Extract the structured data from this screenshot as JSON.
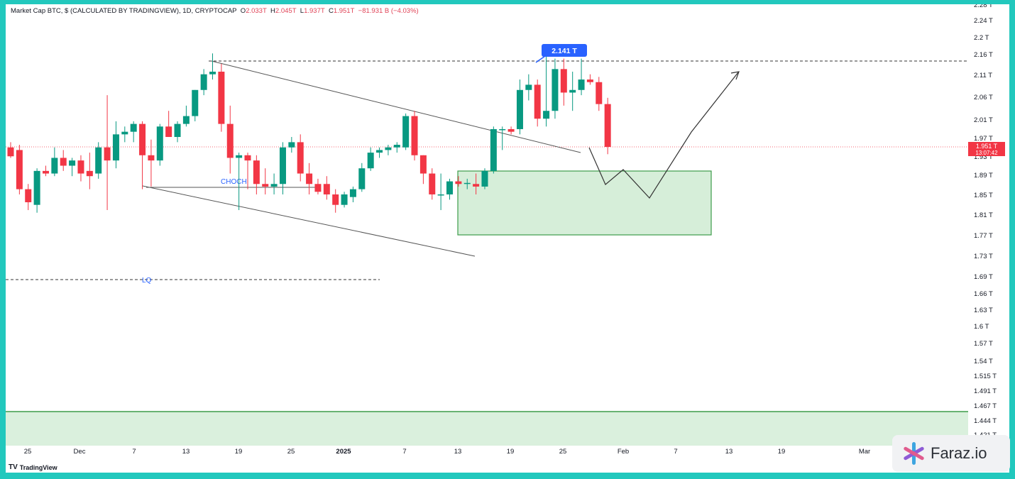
{
  "header": {
    "title": "Market Cap BTC, $ (CALCULATED BY TRADINGVIEW), 1D, CRYPTOCAP",
    "o_label": "O",
    "o_value": "2.033T",
    "h_label": "H",
    "h_value": "2.045T",
    "l_label": "L",
    "l_value": "1.937T",
    "c_label": "C",
    "c_value": "1.951T",
    "change": "−81.931 B (−4.03%)"
  },
  "brand": {
    "logo": "TV",
    "name": "TradingView"
  },
  "watermark": {
    "text": "Faraz.io"
  },
  "colors": {
    "up": "#089981",
    "down": "#f23645",
    "zone_fill": "#cdebd1",
    "zone_stroke": "#3d9c4a",
    "label_bg": "#2962ff"
  },
  "chart_data": {
    "type": "candlestick",
    "y_ticks": [
      "2.28 T",
      "2.24 T",
      "2.2 T",
      "2.16 T",
      "2.11 T",
      "2.06 T",
      "2.01 T",
      "1.97 T",
      "1.93 T",
      "1.89 T",
      "1.85 T",
      "1.81 T",
      "1.77 T",
      "1.73 T",
      "1.69 T",
      "1.66 T",
      "1.63 T",
      "1.6 T",
      "1.57 T",
      "1.54 T",
      "1.515 T",
      "1.491 T",
      "1.467 T",
      "1.444 T",
      "1.421 T"
    ],
    "x_ticks": [
      "25",
      "Dec",
      "7",
      "13",
      "19",
      "25",
      "2025",
      "7",
      "13",
      "19",
      "25",
      "Feb",
      "7",
      "13",
      "19",
      "Mar"
    ],
    "price_label": "1.951 T",
    "countdown": "13:07:42",
    "high_label": "2.141 T",
    "annotations": {
      "choch": "CHOCH",
      "lq": "LQ"
    },
    "candles": [
      {
        "date": "2024-11-21",
        "o": 1.95,
        "h": 1.96,
        "l": 1.93,
        "c": 1.933
      },
      {
        "date": "2024-11-22",
        "o": 1.945,
        "h": 1.955,
        "l": 1.86,
        "c": 1.87
      },
      {
        "date": "2024-11-23",
        "o": 1.87,
        "h": 1.88,
        "l": 1.83,
        "c": 1.845
      },
      {
        "date": "2024-11-24",
        "o": 1.84,
        "h": 1.91,
        "l": 1.825,
        "c": 1.905
      },
      {
        "date": "2024-11-25",
        "o": 1.905,
        "h": 1.915,
        "l": 1.895,
        "c": 1.9
      },
      {
        "date": "2024-11-26",
        "o": 1.9,
        "h": 1.95,
        "l": 1.895,
        "c": 1.93
      },
      {
        "date": "2024-11-27",
        "o": 1.93,
        "h": 1.945,
        "l": 1.905,
        "c": 1.915
      },
      {
        "date": "2024-11-28",
        "o": 1.915,
        "h": 1.93,
        "l": 1.895,
        "c": 1.925
      },
      {
        "date": "2024-11-29",
        "o": 1.925,
        "h": 1.935,
        "l": 1.885,
        "c": 1.9
      },
      {
        "date": "2024-11-30",
        "o": 1.905,
        "h": 1.94,
        "l": 1.87,
        "c": 1.895
      },
      {
        "date": "2024-12-01",
        "o": 1.9,
        "h": 1.96,
        "l": 1.89,
        "c": 1.95
      },
      {
        "date": "2024-12-02",
        "o": 1.95,
        "h": 2.05,
        "l": 1.83,
        "c": 1.925
      },
      {
        "date": "2024-12-03",
        "o": 1.925,
        "h": 2.0,
        "l": 1.91,
        "c": 1.975
      },
      {
        "date": "2024-12-04",
        "o": 1.975,
        "h": 1.99,
        "l": 1.96,
        "c": 1.98
      },
      {
        "date": "2024-12-05",
        "o": 1.98,
        "h": 2.0,
        "l": 1.96,
        "c": 1.995
      },
      {
        "date": "2024-12-06",
        "o": 1.995,
        "h": 2.0,
        "l": 1.87,
        "c": 1.935
      },
      {
        "date": "2024-12-07",
        "o": 1.935,
        "h": 1.965,
        "l": 1.875,
        "c": 1.925
      },
      {
        "date": "2024-12-08",
        "o": 1.925,
        "h": 1.995,
        "l": 1.915,
        "c": 1.99
      },
      {
        "date": "2024-12-09",
        "o": 1.99,
        "h": 2.02,
        "l": 1.97,
        "c": 1.97
      },
      {
        "date": "2024-12-10",
        "o": 1.97,
        "h": 2.0,
        "l": 1.96,
        "c": 1.995
      },
      {
        "date": "2024-12-11",
        "o": 1.995,
        "h": 2.03,
        "l": 1.99,
        "c": 2.01
      },
      {
        "date": "2024-12-12",
        "o": 2.01,
        "h": 2.06,
        "l": 2.0,
        "c": 2.06
      },
      {
        "date": "2024-12-13",
        "o": 2.06,
        "h": 2.1,
        "l": 2.05,
        "c": 2.09
      },
      {
        "date": "2024-12-14",
        "o": 2.09,
        "h": 2.13,
        "l": 2.08,
        "c": 2.095
      },
      {
        "date": "2024-12-15",
        "o": 2.095,
        "h": 2.11,
        "l": 1.98,
        "c": 1.995
      },
      {
        "date": "2024-12-16",
        "o": 1.995,
        "h": 2.03,
        "l": 1.9,
        "c": 1.93
      },
      {
        "date": "2024-12-17",
        "o": 1.93,
        "h": 1.94,
        "l": 1.83,
        "c": 1.935
      },
      {
        "date": "2024-12-18",
        "o": 1.935,
        "h": 1.94,
        "l": 1.87,
        "c": 1.925
      },
      {
        "date": "2024-12-19",
        "o": 1.925,
        "h": 1.935,
        "l": 1.86,
        "c": 1.88
      },
      {
        "date": "2024-12-20",
        "o": 1.88,
        "h": 1.91,
        "l": 1.86,
        "c": 1.875
      },
      {
        "date": "2024-12-21",
        "o": 1.875,
        "h": 1.9,
        "l": 1.86,
        "c": 1.88
      },
      {
        "date": "2024-12-22",
        "o": 1.88,
        "h": 1.96,
        "l": 1.86,
        "c": 1.95
      },
      {
        "date": "2024-12-23",
        "o": 1.95,
        "h": 1.97,
        "l": 1.94,
        "c": 1.96
      },
      {
        "date": "2024-12-24",
        "o": 1.96,
        "h": 1.975,
        "l": 1.885,
        "c": 1.9
      },
      {
        "date": "2024-12-25",
        "o": 1.9,
        "h": 1.92,
        "l": 1.86,
        "c": 1.88
      },
      {
        "date": "2024-12-26",
        "o": 1.88,
        "h": 1.89,
        "l": 1.86,
        "c": 1.865
      },
      {
        "date": "2024-12-27",
        "o": 1.88,
        "h": 1.895,
        "l": 1.85,
        "c": 1.86
      },
      {
        "date": "2024-12-28",
        "o": 1.86,
        "h": 1.87,
        "l": 1.825,
        "c": 1.84
      },
      {
        "date": "2024-12-29",
        "o": 1.84,
        "h": 1.865,
        "l": 1.835,
        "c": 1.86
      },
      {
        "date": "2024-12-30",
        "o": 1.855,
        "h": 1.875,
        "l": 1.845,
        "c": 1.87
      },
      {
        "date": "2024-12-31",
        "o": 1.87,
        "h": 1.92,
        "l": 1.865,
        "c": 1.91
      },
      {
        "date": "2025-01-01",
        "o": 1.91,
        "h": 1.95,
        "l": 1.905,
        "c": 1.94
      },
      {
        "date": "2025-01-02",
        "o": 1.94,
        "h": 1.95,
        "l": 1.93,
        "c": 1.945
      },
      {
        "date": "2025-01-03",
        "o": 1.945,
        "h": 1.955,
        "l": 1.935,
        "c": 1.95
      },
      {
        "date": "2025-01-04",
        "o": 1.95,
        "h": 1.96,
        "l": 1.94,
        "c": 1.955
      },
      {
        "date": "2025-01-05",
        "o": 1.95,
        "h": 2.015,
        "l": 1.945,
        "c": 2.01
      },
      {
        "date": "2025-01-06",
        "o": 2.01,
        "h": 2.02,
        "l": 1.925,
        "c": 1.935
      },
      {
        "date": "2025-01-07",
        "o": 1.935,
        "h": 1.935,
        "l": 1.88,
        "c": 1.9
      },
      {
        "date": "2025-01-08",
        "o": 1.9,
        "h": 1.91,
        "l": 1.85,
        "c": 1.86
      },
      {
        "date": "2025-01-09",
        "o": 1.86,
        "h": 1.9,
        "l": 1.83,
        "c": 1.86
      },
      {
        "date": "2025-01-10",
        "o": 1.86,
        "h": 1.89,
        "l": 1.85,
        "c": 1.885
      },
      {
        "date": "2025-01-11",
        "o": 1.885,
        "h": 1.895,
        "l": 1.875,
        "c": 1.88
      },
      {
        "date": "2025-01-12",
        "o": 1.88,
        "h": 1.89,
        "l": 1.87,
        "c": 1.882
      },
      {
        "date": "2025-01-13",
        "o": 1.88,
        "h": 1.9,
        "l": 1.86,
        "c": 1.875
      },
      {
        "date": "2025-01-14",
        "o": 1.875,
        "h": 1.91,
        "l": 1.87,
        "c": 1.905
      },
      {
        "date": "2025-01-15",
        "o": 1.905,
        "h": 1.99,
        "l": 1.9,
        "c": 1.985
      },
      {
        "date": "2025-01-16",
        "o": 1.985,
        "h": 1.99,
        "l": 1.945,
        "c": 1.985
      },
      {
        "date": "2025-01-17",
        "o": 1.985,
        "h": 1.99,
        "l": 1.975,
        "c": 1.98
      },
      {
        "date": "2025-01-18",
        "o": 1.985,
        "h": 2.08,
        "l": 1.975,
        "c": 2.06
      },
      {
        "date": "2025-01-19",
        "o": 2.06,
        "h": 2.09,
        "l": 2.04,
        "c": 2.07
      },
      {
        "date": "2025-01-20",
        "o": 2.07,
        "h": 2.08,
        "l": 1.99,
        "c": 2.005
      },
      {
        "date": "2025-01-21",
        "o": 2.005,
        "h": 2.141,
        "l": 1.99,
        "c": 2.02
      },
      {
        "date": "2025-01-22",
        "o": 2.02,
        "h": 2.12,
        "l": 2.005,
        "c": 2.1
      },
      {
        "date": "2025-01-23",
        "o": 2.1,
        "h": 2.12,
        "l": 2.03,
        "c": 2.055
      },
      {
        "date": "2025-01-24",
        "o": 2.055,
        "h": 2.095,
        "l": 2.02,
        "c": 2.06
      },
      {
        "date": "2025-01-25",
        "o": 2.06,
        "h": 2.12,
        "l": 2.05,
        "c": 2.08
      },
      {
        "date": "2025-01-26",
        "o": 2.08,
        "h": 2.09,
        "l": 2.07,
        "c": 2.075
      },
      {
        "date": "2025-01-27",
        "o": 2.075,
        "h": 2.085,
        "l": 2.02,
        "c": 2.033
      },
      {
        "date": "2025-01-28",
        "o": 2.033,
        "h": 2.045,
        "l": 1.937,
        "c": 1.951
      }
    ]
  }
}
